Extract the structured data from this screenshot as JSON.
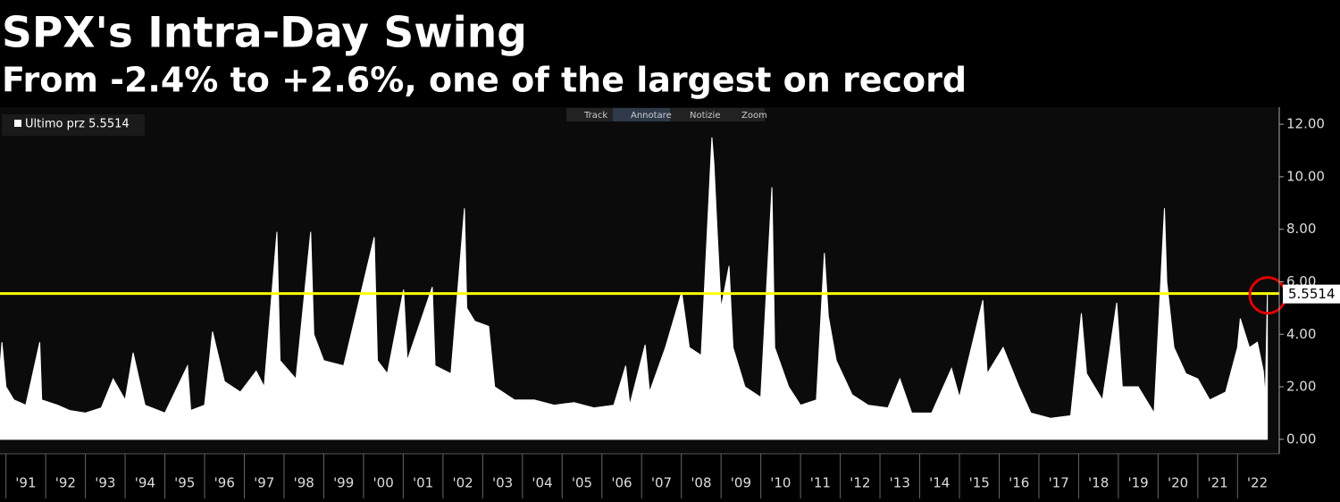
{
  "chart_data": {
    "type": "area",
    "title": "SPX's Intra-Day Swing",
    "subtitle": "From -2.4% to +2.6%, one of the largest on record",
    "toolbar": [
      "Track",
      "Annotare",
      "Notizie",
      "Zoom"
    ],
    "series": [
      {
        "name": "Ultimo prz 5.5514",
        "color": "#ffffff",
        "x": [
          1990.85,
          1990.9,
          1991.0,
          1991.2,
          1991.5,
          1991.85,
          1991.9,
          1992.3,
          1992.6,
          1993.0,
          1993.4,
          1993.7,
          1994.0,
          1994.2,
          1994.5,
          1995.0,
          1995.57,
          1995.65,
          1996.0,
          1996.2,
          1996.5,
          1996.9,
          1997.3,
          1997.5,
          1997.82,
          1997.9,
          1998.3,
          1998.67,
          1998.75,
          1999.0,
          1999.5,
          2000.27,
          2000.35,
          2000.6,
          2001.01,
          2001.1,
          2001.73,
          2001.8,
          2002.2,
          2002.54,
          2002.6,
          2002.8,
          2003.15,
          2003.3,
          2003.8,
          2004.3,
          2004.8,
          2005.3,
          2005.8,
          2006.3,
          2006.6,
          2006.7,
          2007.09,
          2007.2,
          2007.6,
          2008.01,
          2008.2,
          2008.5,
          2008.77,
          2008.82,
          2008.9,
          2009.0,
          2009.2,
          2009.3,
          2009.6,
          2010.0,
          2010.28,
          2010.35,
          2010.7,
          2011.0,
          2011.4,
          2011.6,
          2011.7,
          2011.9,
          2012.3,
          2012.7,
          2013.2,
          2013.5,
          2013.8,
          2014.3,
          2014.8,
          2015.0,
          2015.59,
          2015.7,
          2016.1,
          2016.5,
          2016.8,
          2017.3,
          2017.8,
          2018.07,
          2018.2,
          2018.6,
          2018.96,
          2019.1,
          2019.5,
          2019.9,
          2020.16,
          2020.22,
          2020.4,
          2020.7,
          2021.0,
          2021.3,
          2021.7,
          2022.0,
          2022.07,
          2022.3,
          2022.5,
          2022.65,
          2022.7,
          2022.75
        ],
        "values": [
          2.8,
          3.7,
          2.0,
          1.5,
          1.3,
          3.7,
          1.5,
          1.3,
          1.1,
          1.0,
          1.2,
          2.3,
          1.5,
          3.3,
          1.3,
          1.0,
          2.8,
          1.1,
          1.3,
          4.1,
          2.2,
          1.8,
          2.6,
          2.0,
          7.9,
          3.0,
          2.3,
          7.9,
          4.0,
          3.0,
          2.8,
          7.7,
          3.0,
          2.5,
          5.7,
          3.0,
          5.8,
          2.8,
          2.5,
          8.8,
          5.0,
          4.5,
          4.3,
          2.0,
          1.5,
          1.5,
          1.3,
          1.4,
          1.2,
          1.3,
          2.8,
          1.3,
          3.6,
          1.8,
          3.5,
          5.6,
          3.5,
          3.2,
          11.5,
          10.5,
          8.0,
          5.0,
          6.6,
          3.5,
          2.0,
          1.6,
          9.6,
          3.5,
          2.0,
          1.3,
          1.5,
          7.1,
          4.7,
          3.0,
          1.7,
          1.3,
          1.2,
          2.3,
          1.0,
          1.0,
          2.7,
          1.6,
          5.3,
          2.5,
          3.5,
          2.0,
          1.0,
          0.8,
          0.9,
          4.8,
          2.5,
          1.5,
          5.2,
          2.0,
          2.0,
          1.0,
          8.8,
          6.0,
          3.5,
          2.5,
          2.3,
          1.5,
          1.8,
          3.5,
          4.6,
          3.5,
          3.7,
          2.6,
          1.6,
          5.5514
        ]
      }
    ],
    "hline": {
      "value": 5.5514,
      "color": "#ffff00"
    },
    "xlim": [
      1990.85,
      2023.05
    ],
    "xticks": [
      {
        "value": 1991,
        "label": "'91"
      },
      {
        "value": 1992,
        "label": "'92"
      },
      {
        "value": 1993,
        "label": "'93"
      },
      {
        "value": 1994,
        "label": "'94"
      },
      {
        "value": 1995,
        "label": "'95"
      },
      {
        "value": 1996,
        "label": "'96"
      },
      {
        "value": 1997,
        "label": "'97"
      },
      {
        "value": 1998,
        "label": "'98"
      },
      {
        "value": 1999,
        "label": "'99"
      },
      {
        "value": 2000,
        "label": "'00"
      },
      {
        "value": 2001,
        "label": "'01"
      },
      {
        "value": 2002,
        "label": "'02"
      },
      {
        "value": 2003,
        "label": "'03"
      },
      {
        "value": 2004,
        "label": "'04"
      },
      {
        "value": 2005,
        "label": "'05"
      },
      {
        "value": 2006,
        "label": "'06"
      },
      {
        "value": 2007,
        "label": "'07"
      },
      {
        "value": 2008,
        "label": "'08"
      },
      {
        "value": 2009,
        "label": "'09"
      },
      {
        "value": 2010,
        "label": "'10"
      },
      {
        "value": 2011,
        "label": "'11"
      },
      {
        "value": 2012,
        "label": "'12"
      },
      {
        "value": 2013,
        "label": "'13"
      },
      {
        "value": 2014,
        "label": "'14"
      },
      {
        "value": 2015,
        "label": "'15"
      },
      {
        "value": 2016,
        "label": "'16"
      },
      {
        "value": 2017,
        "label": "'17"
      },
      {
        "value": 2018,
        "label": "'18"
      },
      {
        "value": 2019,
        "label": "'19"
      },
      {
        "value": 2020,
        "label": "'20"
      },
      {
        "value": 2021,
        "label": "'21"
      },
      {
        "value": 2022,
        "label": "'22"
      }
    ],
    "ylim": [
      -0.55,
      12.65
    ],
    "yticks": [
      {
        "value": 0,
        "label": "0.00"
      },
      {
        "value": 2,
        "label": "2.00"
      },
      {
        "value": 4,
        "label": "4.00"
      },
      {
        "value": 6,
        "label": "6.00"
      },
      {
        "value": 8,
        "label": "8.00"
      },
      {
        "value": 10,
        "label": "10.00"
      },
      {
        "value": 12,
        "label": "12.00"
      }
    ]
  }
}
